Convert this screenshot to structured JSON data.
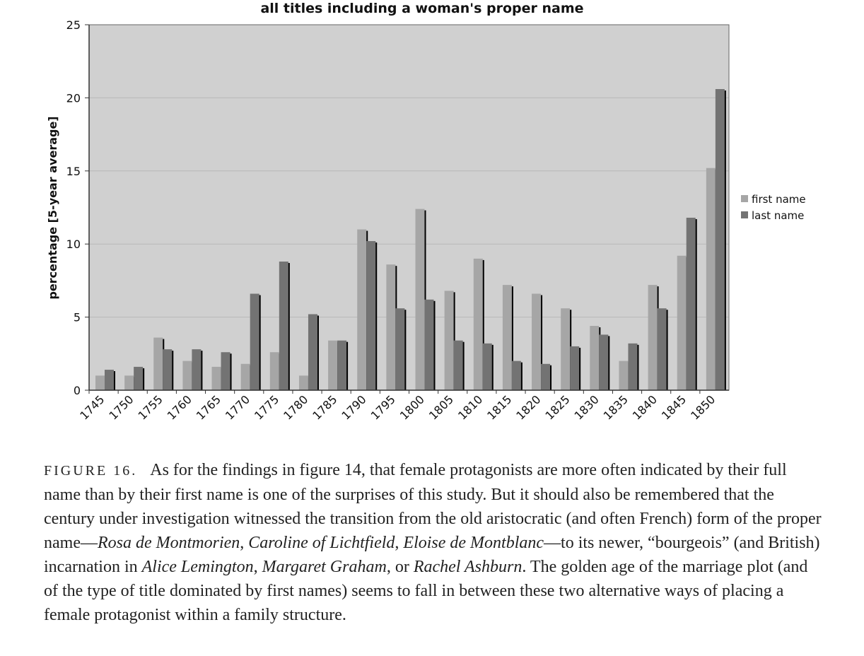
{
  "chart_data": {
    "type": "bar",
    "title": "all titles including a woman's proper name",
    "xlabel": "",
    "ylabel": "percentage [5-year average]",
    "ylim": [
      0,
      25
    ],
    "yticks": [
      0,
      5,
      10,
      15,
      20,
      25
    ],
    "grid": true,
    "legend_position": "right",
    "categories": [
      "1745",
      "1750",
      "1755",
      "1760",
      "1765",
      "1770",
      "1775",
      "1780",
      "1785",
      "1790",
      "1795",
      "1800",
      "1805",
      "1810",
      "1815",
      "1820",
      "1825",
      "1830",
      "1835",
      "1840",
      "1845",
      "1850"
    ],
    "series": [
      {
        "name": "first name",
        "color": "#a6a6a6",
        "values": [
          1.0,
          1.0,
          3.6,
          2.0,
          1.6,
          1.8,
          2.6,
          1.0,
          3.4,
          11.0,
          8.6,
          12.4,
          6.8,
          9.0,
          7.2,
          6.6,
          5.6,
          4.4,
          2.0,
          7.2,
          9.2,
          15.2
        ]
      },
      {
        "name": "last name",
        "color": "#737373",
        "values": [
          1.4,
          1.6,
          2.8,
          2.8,
          2.6,
          6.6,
          8.8,
          5.2,
          3.4,
          10.2,
          5.6,
          6.2,
          3.4,
          3.2,
          2.0,
          1.8,
          3.0,
          3.8,
          3.2,
          5.6,
          11.8,
          20.6
        ]
      }
    ],
    "plot_background": "#d0d0d0",
    "gridline_color": "#b8b8b8"
  },
  "caption": {
    "label": "FIGURE 16.",
    "segments": [
      {
        "text": "As for the findings in figure 14, that female protagonists are more often indicated by their full name than by their first name is one of the surprises of this study. But it should also be remembered that the century under investigation witnessed the transition from the old aristocratic (and often French) form of the proper name—",
        "italic": false
      },
      {
        "text": "Rosa de Montmorien",
        "italic": true
      },
      {
        "text": ", ",
        "italic": false
      },
      {
        "text": "Caroline of Lichtfield",
        "italic": true
      },
      {
        "text": ", ",
        "italic": false
      },
      {
        "text": "Eloise de Montblanc",
        "italic": true
      },
      {
        "text": "—to its newer, “bourgeois” (and British) incarnation in ",
        "italic": false
      },
      {
        "text": "Alice Lemington",
        "italic": true
      },
      {
        "text": ", ",
        "italic": false
      },
      {
        "text": "Margaret Graham",
        "italic": true
      },
      {
        "text": ", or ",
        "italic": false
      },
      {
        "text": "Rachel Ashburn",
        "italic": true
      },
      {
        "text": ". The golden age of the marriage plot (and of the type of title dominated by first names) seems to fall in between these two alternative ways of placing a female protagonist within a family structure.",
        "italic": false
      }
    ]
  }
}
